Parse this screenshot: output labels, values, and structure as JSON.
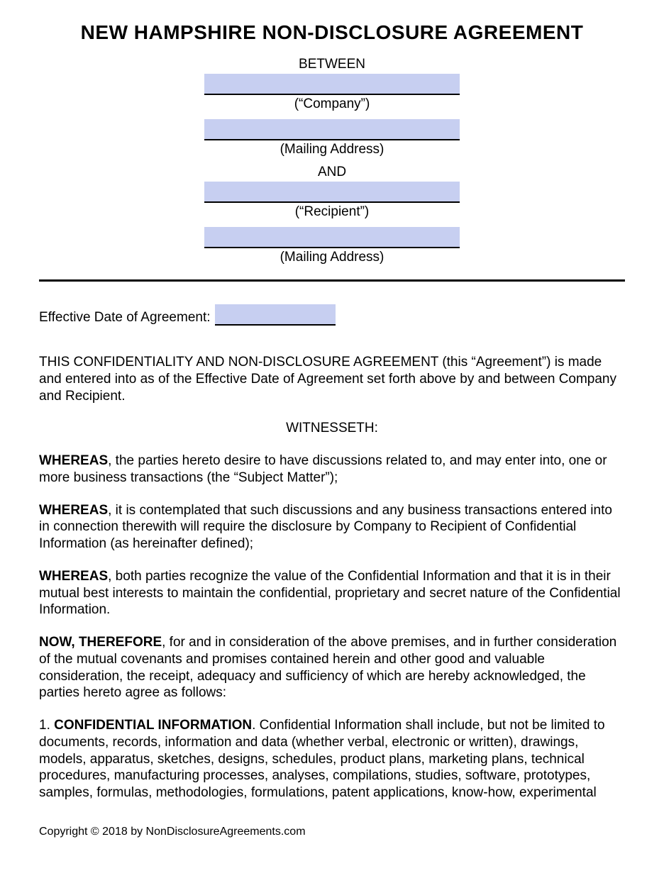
{
  "colors": {
    "field_bg": "#c7cff1",
    "text": "#000000",
    "page_bg": "#ffffff",
    "border": "#000000"
  },
  "title": "NEW HAMPSHIRE NON-DISCLOSURE AGREEMENT",
  "header": {
    "between_label": "BETWEEN",
    "company_caption": "(“Company”)",
    "mailing_caption_1": "(Mailing Address)",
    "and_label": "AND",
    "recipient_caption": "(“Recipient”)",
    "mailing_caption_2": "(Mailing Address)",
    "fields": {
      "company_name": "",
      "company_address": "",
      "recipient_name": "",
      "recipient_address": ""
    }
  },
  "effective_date": {
    "label": "Effective Date of Agreement:",
    "value": ""
  },
  "intro": "THIS CONFIDENTIALITY AND NON-DISCLOSURE AGREEMENT (this “Agreement”) is made and entered into as of the Effective Date of Agreement set forth above by and between Company and Recipient.",
  "witnesseth_label": "WITNESSETH:",
  "whereas": [
    {
      "lead": "WHEREAS",
      "text": ", the parties hereto desire to have discussions related to, and may enter into, one or more business transactions (the “Subject Matter”);"
    },
    {
      "lead": "WHEREAS",
      "text": ", it is contemplated that such discussions and any business transactions entered into in connection therewith will require the disclosure by Company to Recipient of Confidential Information (as hereinafter defined);"
    },
    {
      "lead": "WHEREAS",
      "text": ", both parties recognize the value of the Confidential Information and that it is in their mutual best interests to maintain the confidential, proprietary and secret nature of the Confidential Information."
    }
  ],
  "now_therefore": {
    "lead": "NOW, THEREFORE",
    "text": ", for and in consideration of the above premises, and in further consideration of the mutual covenants and promises contained herein and other good and valuable consideration, the receipt, adequacy and sufficiency of which are hereby acknowledged, the parties hereto agree as follows:"
  },
  "section1": {
    "number": "1. ",
    "heading": "CONFIDENTIAL INFORMATION",
    "text": ". Confidential Information shall include, but not be limited to documents, records, information and data (whether verbal, electronic or written), drawings, models, apparatus, sketches, designs, schedules, product plans, marketing plans, technical procedures, manufacturing processes, analyses, compilations, studies, software, prototypes, samples, formulas, methodologies, formulations, patent applications, know-how, experimental"
  },
  "footer": "Copyright © 2018 by NonDisclosureAgreements.com"
}
